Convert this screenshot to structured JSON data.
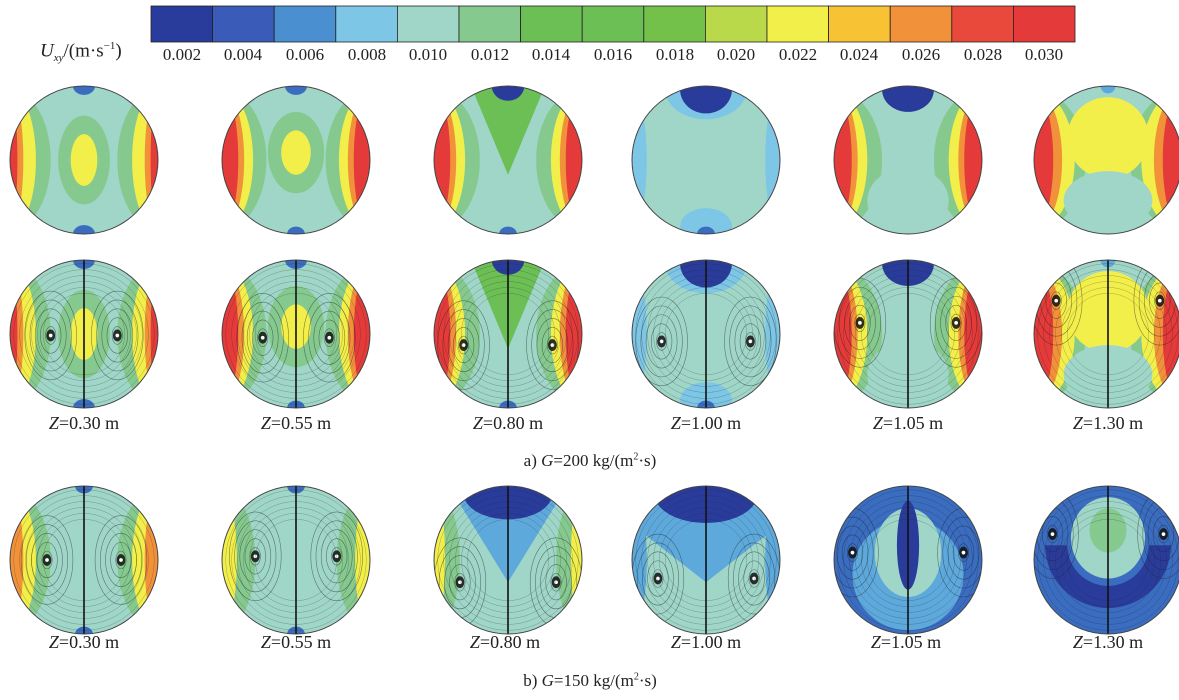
{
  "colorbar": {
    "label_var": "U",
    "label_sub": "xy",
    "label_unit_pre": "/(m·s",
    "label_unit_sup": "−1",
    "label_unit_post": ")",
    "ticks": [
      "0.002",
      "0.004",
      "0.006",
      "0.008",
      "0.010",
      "0.012",
      "0.014",
      "0.016",
      "0.018",
      "0.020",
      "0.022",
      "0.024",
      "0.026",
      "0.028",
      "0.030"
    ],
    "colors": [
      "#2a3c9b",
      "#3a5cb8",
      "#4a8fd0",
      "#7ec6e6",
      "#9fd6c8",
      "#86c98f",
      "#6cbf55",
      "#6cbf55",
      "#73c04a",
      "#b9d84a",
      "#f3ef4a",
      "#f7c233",
      "#f1923a",
      "#e8493a",
      "#e53a3a"
    ]
  },
  "panels": [
    {
      "caption_prefix": "a) ",
      "caption_var": "G",
      "caption_value": "=200 kg/(m",
      "caption_sup": "2",
      "caption_suffix": "·s)",
      "z_labels": [
        "=0.30 m",
        "=0.55 m",
        "=0.80 m",
        "=1.00 m",
        "=1.05 m",
        "=1.30 m"
      ]
    },
    {
      "caption_prefix": "b) ",
      "caption_var": "G",
      "caption_value": "=150 kg/(m",
      "caption_sup": "2",
      "caption_suffix": "·s)",
      "z_labels": [
        "=0.30 m",
        "=0.55 m",
        "=0.80 m",
        "=1.00 m",
        "=1.05 m",
        "=1.30 m"
      ]
    }
  ],
  "z_var": "Z"
}
